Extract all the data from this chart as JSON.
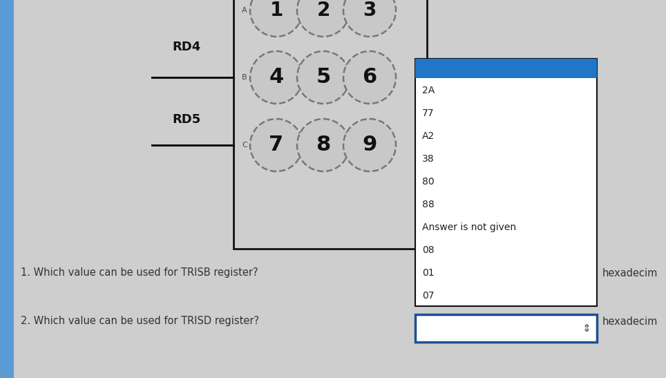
{
  "bg_color": "#cecece",
  "blue_stripe_color": "#5b9bd5",
  "keypad_box_color": "#111111",
  "dropdown_bg": "#ffffff",
  "dropdown_border": "#111111",
  "dropdown_selected_bg": "#2176c7",
  "dropdown2_border": "#1e4f8f",
  "dropdown_items": [
    "2A",
    "77",
    "A2",
    "38",
    "80",
    "88",
    "Answer is not given",
    "08",
    "01",
    "07"
  ],
  "q1_text": "1. Which value can be used for TRISB register?",
  "q2_text": "2. Which value can be used for TRISD register?",
  "hex_label": "hexadecim",
  "keypad_numbers": [
    [
      "1",
      "2",
      "3"
    ],
    [
      "4",
      "5",
      "6"
    ],
    [
      "7",
      "8",
      "9"
    ]
  ],
  "circle_color": "#c8c8c8",
  "circle_edge": "#777777",
  "num_color": "#111111"
}
